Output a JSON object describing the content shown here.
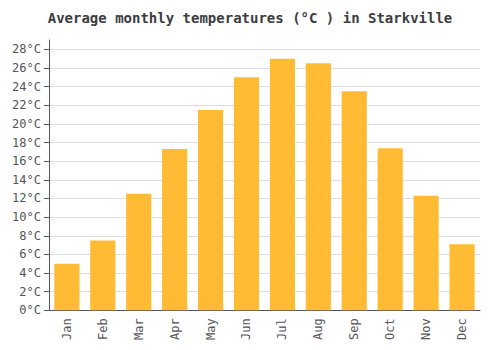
{
  "chart_data": {
    "type": "bar",
    "title": "Average monthly temperatures (°C ) in Starkville",
    "categories": [
      "Jan",
      "Feb",
      "Mar",
      "Apr",
      "May",
      "Jun",
      "Jul",
      "Aug",
      "Sep",
      "Oct",
      "Nov",
      "Dec"
    ],
    "values": [
      5.0,
      7.5,
      12.5,
      17.3,
      21.5,
      25.0,
      27.0,
      26.5,
      23.5,
      17.4,
      12.3,
      7.1
    ],
    "color": "#FFBB33",
    "ylim": [
      0,
      29
    ],
    "yticks": [
      {
        "value": 0,
        "label": "0°C"
      },
      {
        "value": 2,
        "label": "2°C"
      },
      {
        "value": 4,
        "label": "4°C"
      },
      {
        "value": 6,
        "label": "6°C"
      },
      {
        "value": 8,
        "label": "8°C"
      },
      {
        "value": 10,
        "label": "10°C"
      },
      {
        "value": 12,
        "label": "12°C"
      },
      {
        "value": 14,
        "label": "14°C"
      },
      {
        "value": 16,
        "label": "16°C"
      },
      {
        "value": 18,
        "label": "18°C"
      },
      {
        "value": 20,
        "label": "20°C"
      },
      {
        "value": 22,
        "label": "22°C"
      },
      {
        "value": 24,
        "label": "24°C"
      },
      {
        "value": 26,
        "label": "26°C"
      },
      {
        "value": 28,
        "label": "28°C"
      }
    ],
    "grid": true
  }
}
